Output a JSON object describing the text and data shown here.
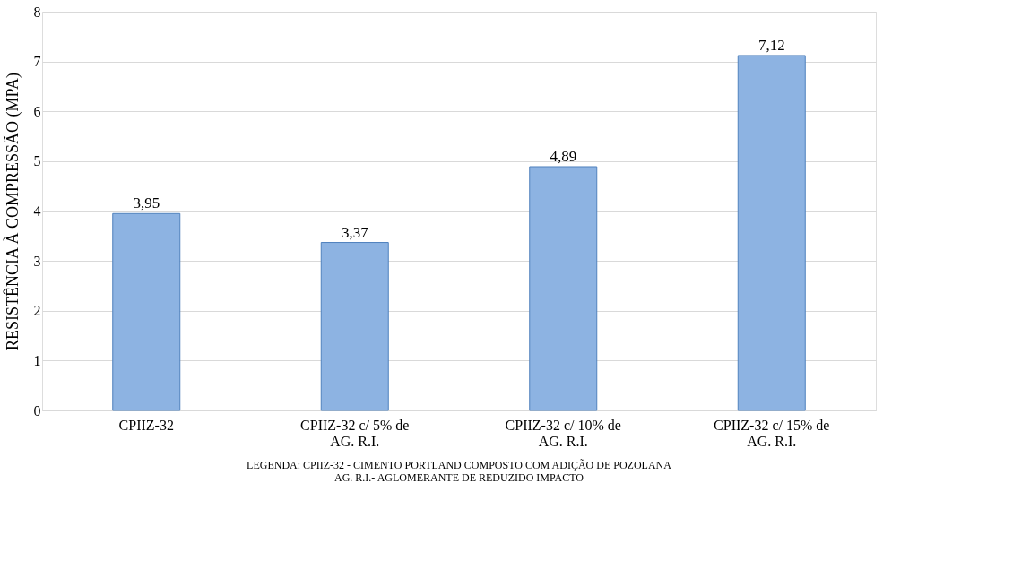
{
  "chart_data": {
    "type": "bar",
    "ylabel": "RESISTÊNCIA À COMPRESSÃO (MPA)",
    "categories": [
      "CPIIZ-32",
      "CPIIZ-32 c/ 5% de AG. R.I.",
      "CPIIZ-32 c/ 10% de AG. R.I.",
      "CPIIZ-32 c/ 15% de AG. R.I."
    ],
    "values": [
      3.95,
      3.37,
      4.89,
      7.12
    ],
    "value_labels": [
      "3,95",
      "3,37",
      "4,89",
      "7,12"
    ],
    "color": "#8db3e2",
    "ylim": [
      0,
      8
    ],
    "yticks": [
      0,
      1,
      2,
      3,
      4,
      5,
      6,
      7,
      8
    ],
    "grid": "y",
    "annotations": [
      "LEGENDA: CPIIZ-32 - CIMENTO PORTLAND COMPOSTO COM ADIÇÃO DE POZOLANA",
      "AG. R.I.- AGLOMERANTE DE REDUZIDO IMPACTO"
    ]
  }
}
